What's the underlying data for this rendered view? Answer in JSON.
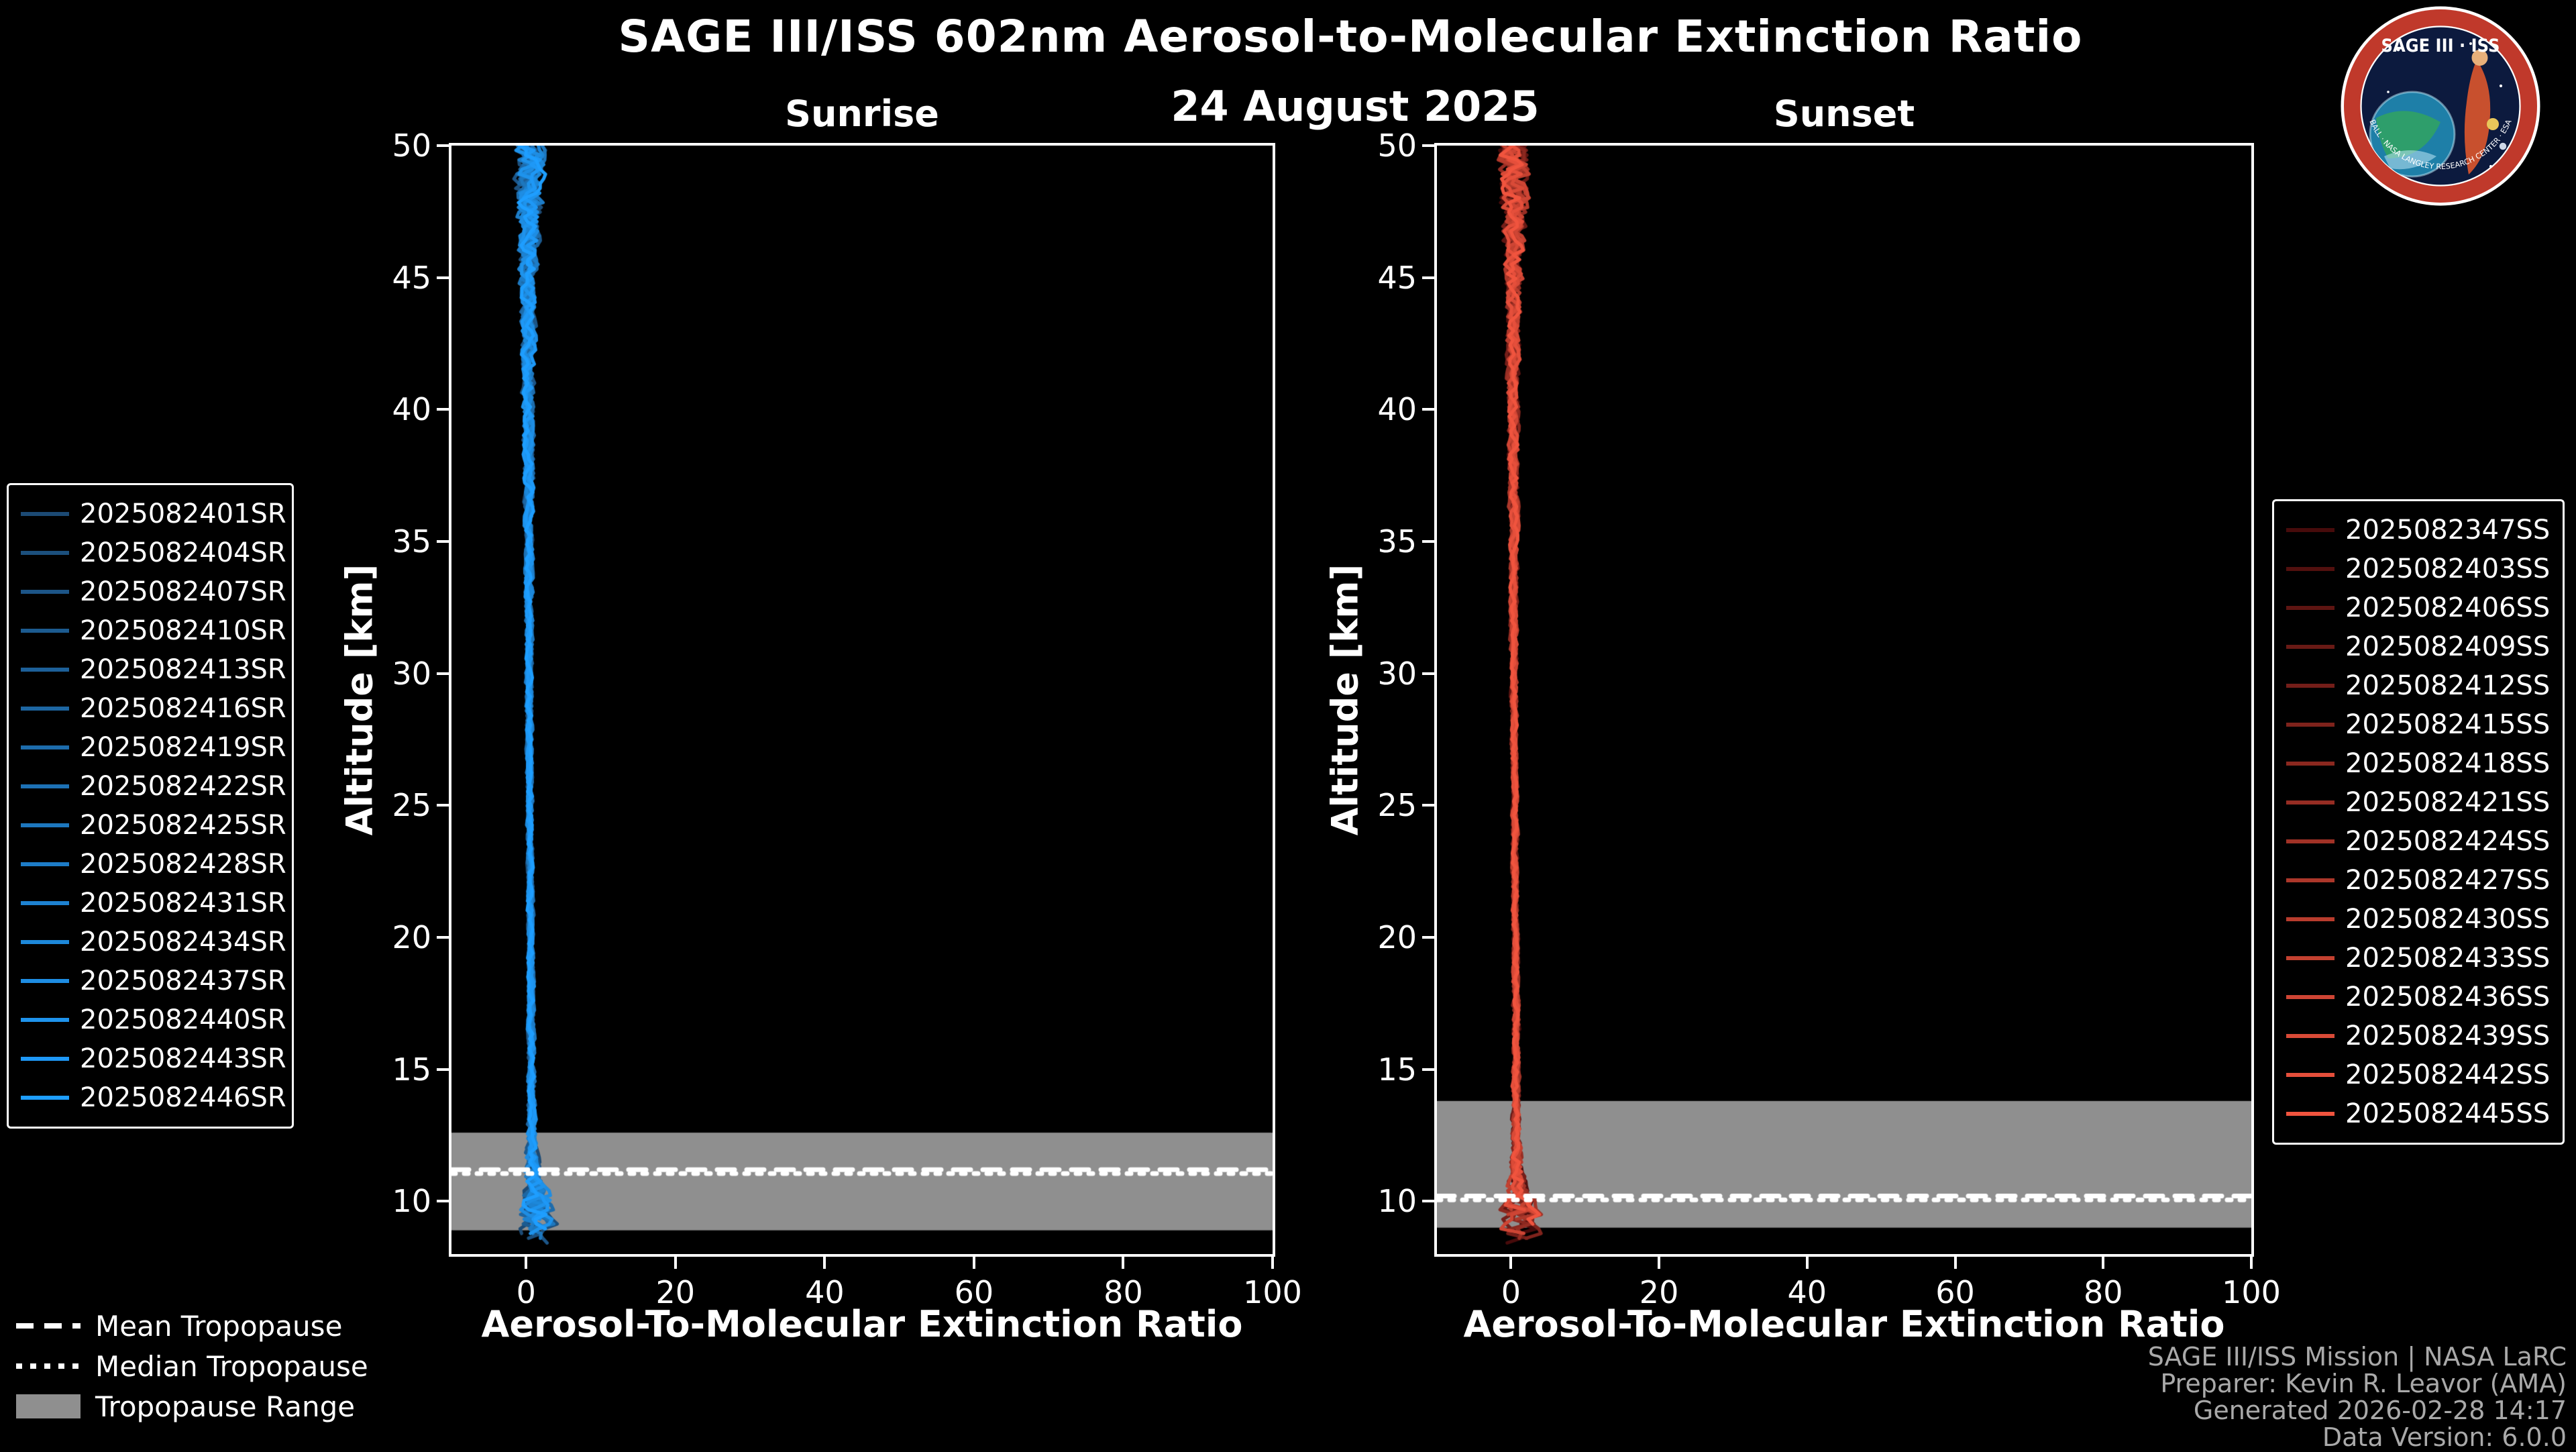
{
  "header": {
    "title": "SAGE III/ISS 602nm Aerosol-to-Molecular Extinction Ratio",
    "date": "24 August 2025"
  },
  "logo": {
    "title": "SAGE III · ISS",
    "ring_text": "BALL · NASA LANGLEY RESEARCH CENTER · ESA"
  },
  "tropopause_legend": {
    "items": [
      {
        "label": "Mean Tropopause",
        "style": "dashed"
      },
      {
        "label": "Median Tropopause",
        "style": "dotted"
      },
      {
        "label": "Tropopause Range",
        "style": "box"
      }
    ]
  },
  "footer": {
    "lines": [
      "SAGE III/ISS Mission | NASA LaRC",
      "Preparer: Kevin R. Leavor (AMA)",
      "Generated 2026-02-28 14:17",
      "Data Version: 6.0.0"
    ]
  },
  "chart_data": [
    {
      "type": "line",
      "title": "Sunrise",
      "xlabel": "Aerosol-To-Molecular Extinction Ratio",
      "ylabel": "Altitude [km]",
      "xlim": [
        -10,
        100
      ],
      "ylim": [
        8,
        50
      ],
      "xticks": [
        0,
        20,
        40,
        60,
        80,
        100
      ],
      "yticks": [
        10,
        15,
        20,
        25,
        30,
        35,
        40,
        45,
        50
      ],
      "grid": false,
      "legend_position": "left",
      "series": [
        "2025082401SR",
        "2025082404SR",
        "2025082407SR",
        "2025082410SR",
        "2025082413SR",
        "2025082416SR",
        "2025082419SR",
        "2025082422SR",
        "2025082425SR",
        "2025082428SR",
        "2025082431SR",
        "2025082434SR",
        "2025082437SR",
        "2025082440SR",
        "2025082443SR",
        "2025082446SR"
      ],
      "color_start": "#1c4a74",
      "color_end": "#1e9eff",
      "band_color": "#8f8f8f",
      "tropopause_line_color": "#ffffff",
      "tropopause": {
        "mean": 11.2,
        "median": 11.05,
        "range": [
          8.9,
          12.6
        ]
      },
      "profile": {
        "altitude": [
          8,
          8.5,
          9,
          9.5,
          10,
          10.5,
          11,
          12,
          14,
          16,
          20,
          25,
          30,
          35,
          40,
          44,
          47,
          50
        ],
        "ratio": [
          0.8,
          1.0,
          1.3,
          1.5,
          1.3,
          1.1,
          0.9,
          0.7,
          0.7,
          0.7,
          0.6,
          0.5,
          0.4,
          0.4,
          0.3,
          0.3,
          0.4,
          0.5
        ],
        "noise": [
          1.6,
          1.9,
          2.3,
          2.4,
          2.1,
          1.5,
          1.0,
          0.6,
          0.45,
          0.4,
          0.35,
          0.35,
          0.4,
          0.5,
          0.7,
          0.9,
          1.4,
          2.0
        ]
      },
      "seed": 20250824
    },
    {
      "type": "line",
      "title": "Sunset",
      "xlabel": "Aerosol-To-Molecular Extinction Ratio",
      "ylabel": "Altitude [km]",
      "xlim": [
        -10,
        100
      ],
      "ylim": [
        8,
        50
      ],
      "xticks": [
        0,
        20,
        40,
        60,
        80,
        100
      ],
      "yticks": [
        10,
        15,
        20,
        25,
        30,
        35,
        40,
        45,
        50
      ],
      "grid": false,
      "legend_position": "right",
      "series": [
        "2025082347SS",
        "2025082403SS",
        "2025082406SS",
        "2025082409SS",
        "2025082412SS",
        "2025082415SS",
        "2025082418SS",
        "2025082421SS",
        "2025082424SS",
        "2025082427SS",
        "2025082430SS",
        "2025082433SS",
        "2025082436SS",
        "2025082439SS",
        "2025082442SS",
        "2025082445SS"
      ],
      "color_start": "#470b0b",
      "color_end": "#f0543e",
      "band_color": "#8f8f8f",
      "tropopause_line_color": "#ffffff",
      "tropopause": {
        "mean": 10.2,
        "median": 10.05,
        "range": [
          9.0,
          13.8
        ]
      },
      "profile": {
        "altitude": [
          8.5,
          9,
          9.5,
          10,
          10.5,
          11,
          12,
          14,
          16,
          20,
          25,
          30,
          35,
          40,
          44,
          47,
          50
        ],
        "ratio": [
          1.0,
          1.4,
          1.3,
          1.1,
          1.0,
          0.9,
          0.7,
          0.7,
          0.7,
          0.6,
          0.5,
          0.4,
          0.4,
          0.3,
          0.3,
          0.4,
          0.5
        ],
        "noise": [
          2.0,
          2.5,
          2.2,
          1.8,
          1.4,
          1.0,
          0.6,
          0.45,
          0.4,
          0.35,
          0.35,
          0.4,
          0.5,
          0.7,
          0.9,
          1.4,
          2.2
        ]
      },
      "seed": 20250825
    }
  ]
}
